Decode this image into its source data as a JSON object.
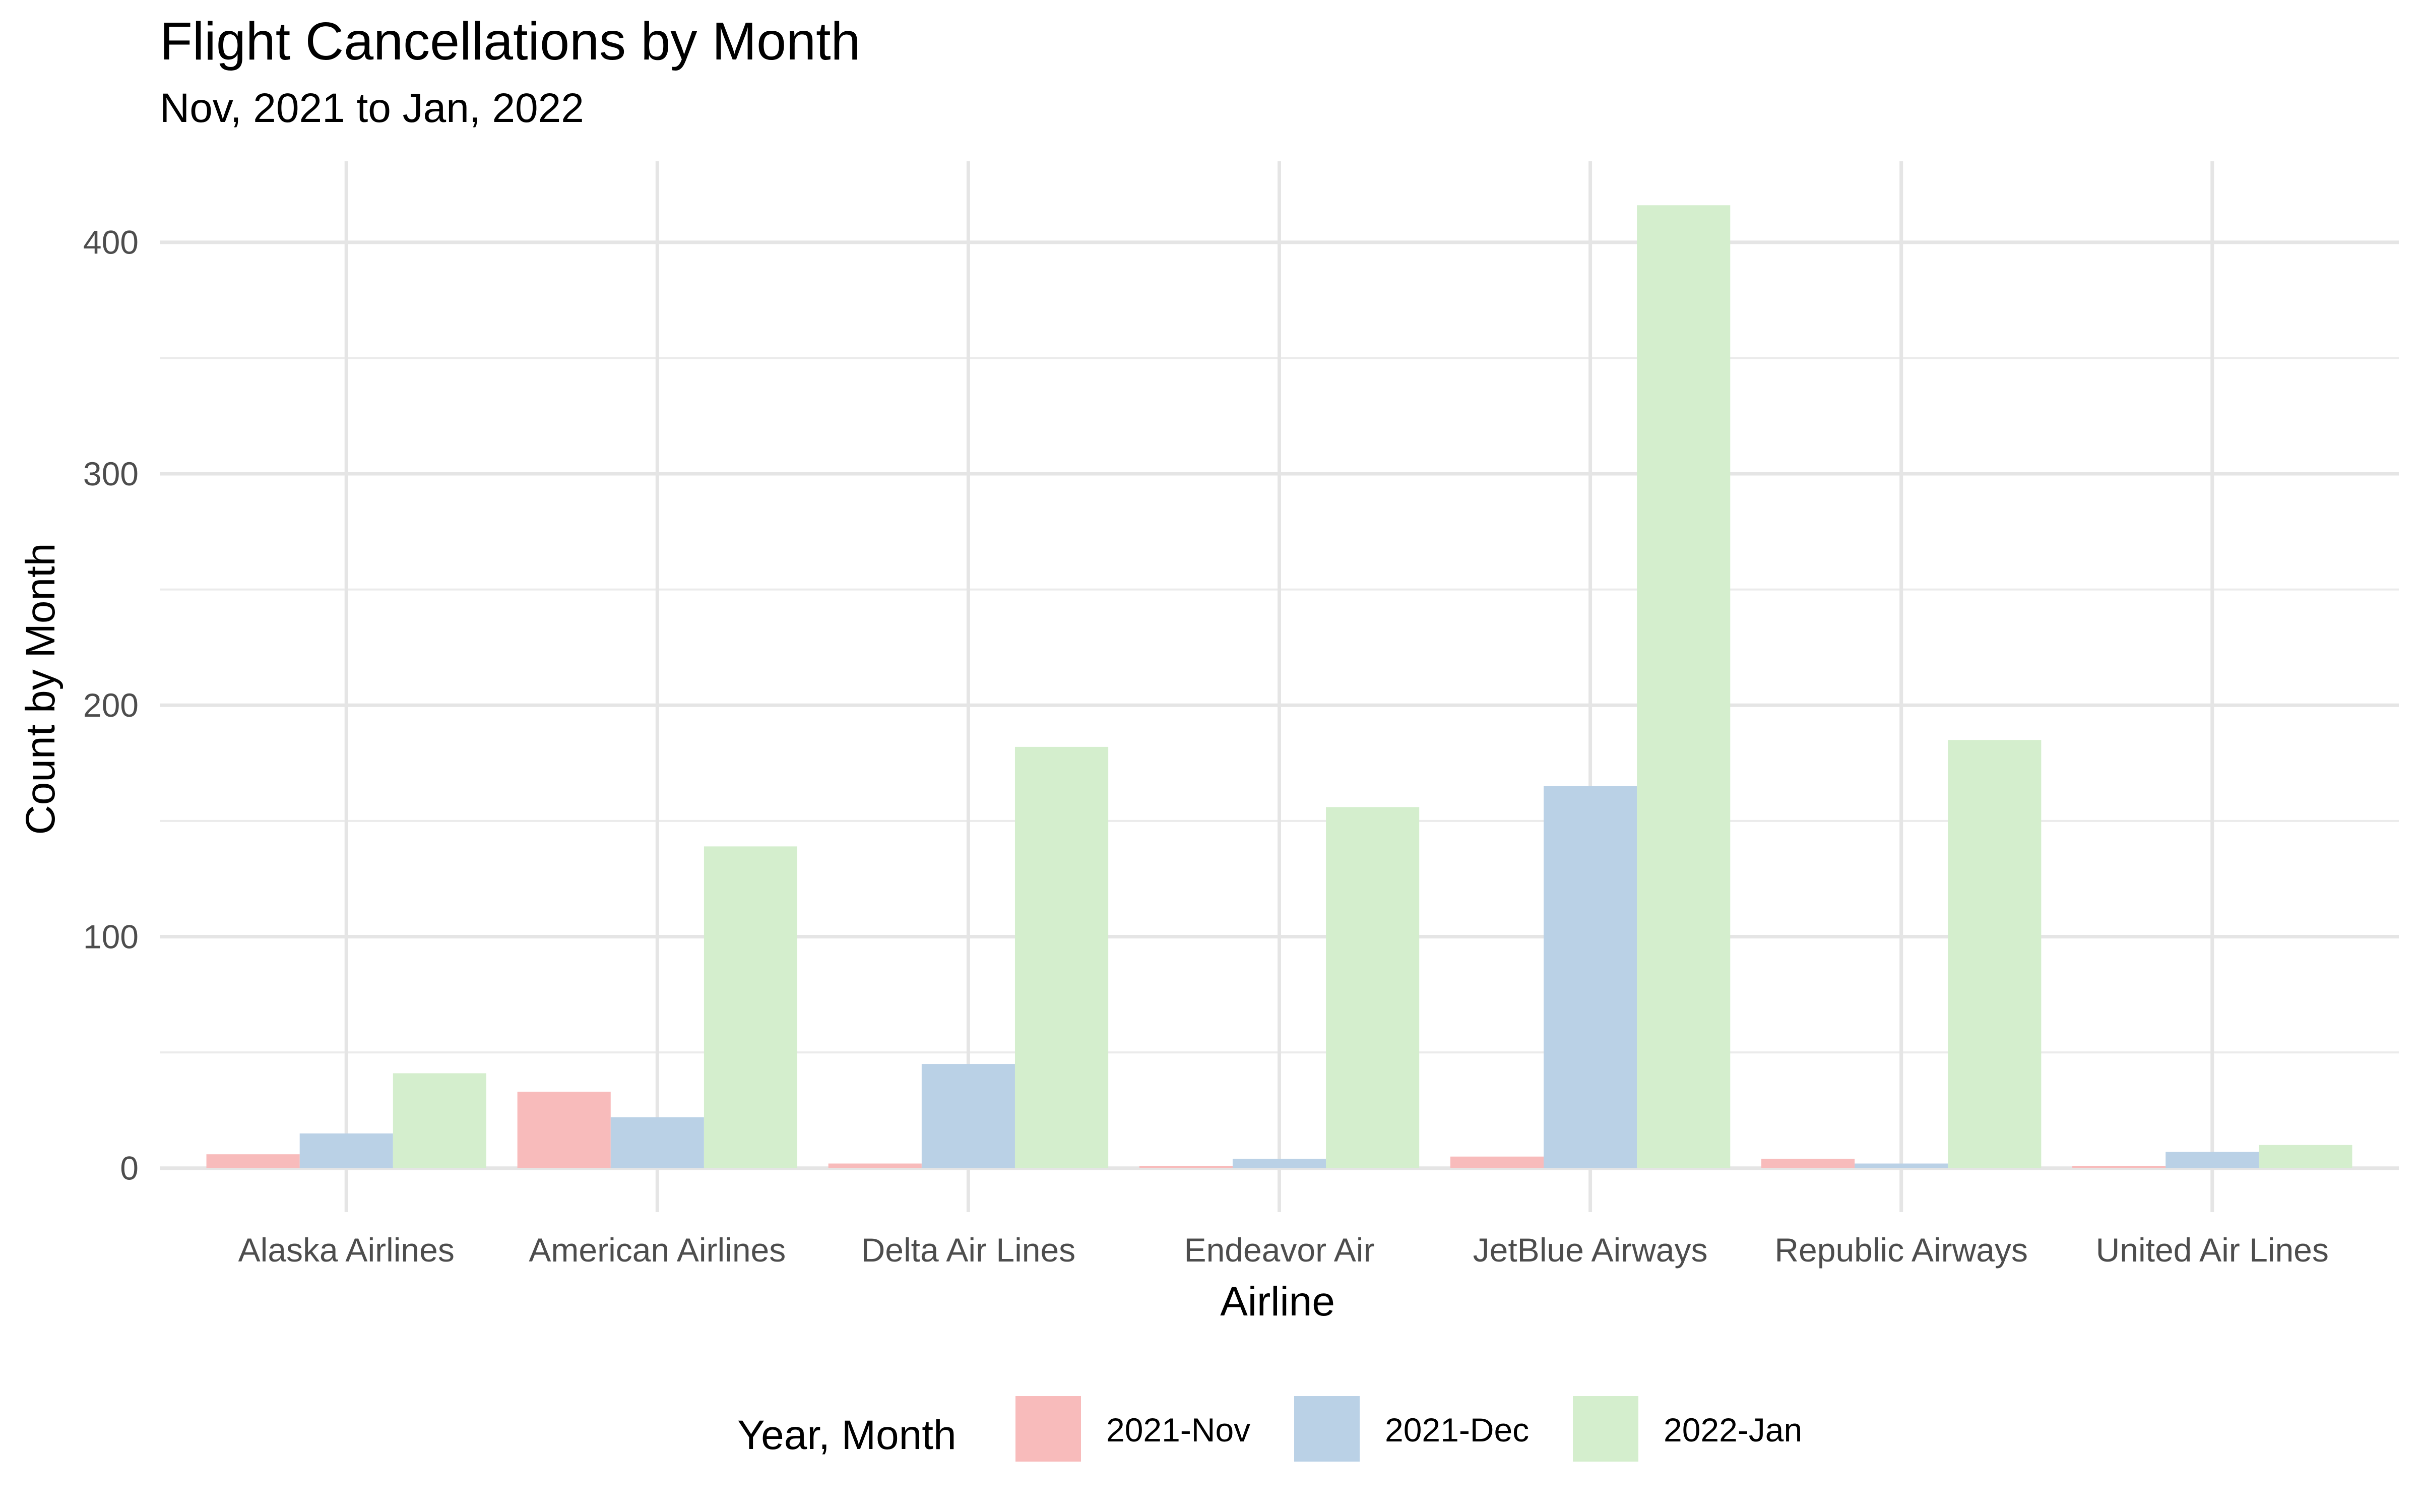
{
  "chart_data": {
    "type": "bar",
    "title": "Flight Cancellations by Month",
    "subtitle": "Nov, 2021 to Jan, 2022",
    "xlabel": "Airline",
    "ylabel": "Count by Month",
    "ylim": [
      -19,
      435
    ],
    "yticks": [
      0,
      100,
      200,
      300,
      400
    ],
    "grid": true,
    "legend_title": "Year, Month",
    "legend_position": "bottom",
    "categories": [
      "Alaska Airlines",
      "American Airlines",
      "Delta Air Lines",
      "Endeavor Air",
      "JetBlue Airways",
      "Republic Airways",
      "United Air Lines"
    ],
    "series": [
      {
        "name": "2021-Nov",
        "color": "#f8bbbb",
        "values": [
          6,
          33,
          2,
          1,
          5,
          4,
          1
        ]
      },
      {
        "name": "2021-Dec",
        "color": "#bad1e6",
        "values": [
          15,
          22,
          45,
          4,
          165,
          2,
          7
        ]
      },
      {
        "name": "2022-Jan",
        "color": "#d4eecd",
        "values": [
          41,
          139,
          182,
          156,
          416,
          185,
          10
        ]
      }
    ]
  }
}
